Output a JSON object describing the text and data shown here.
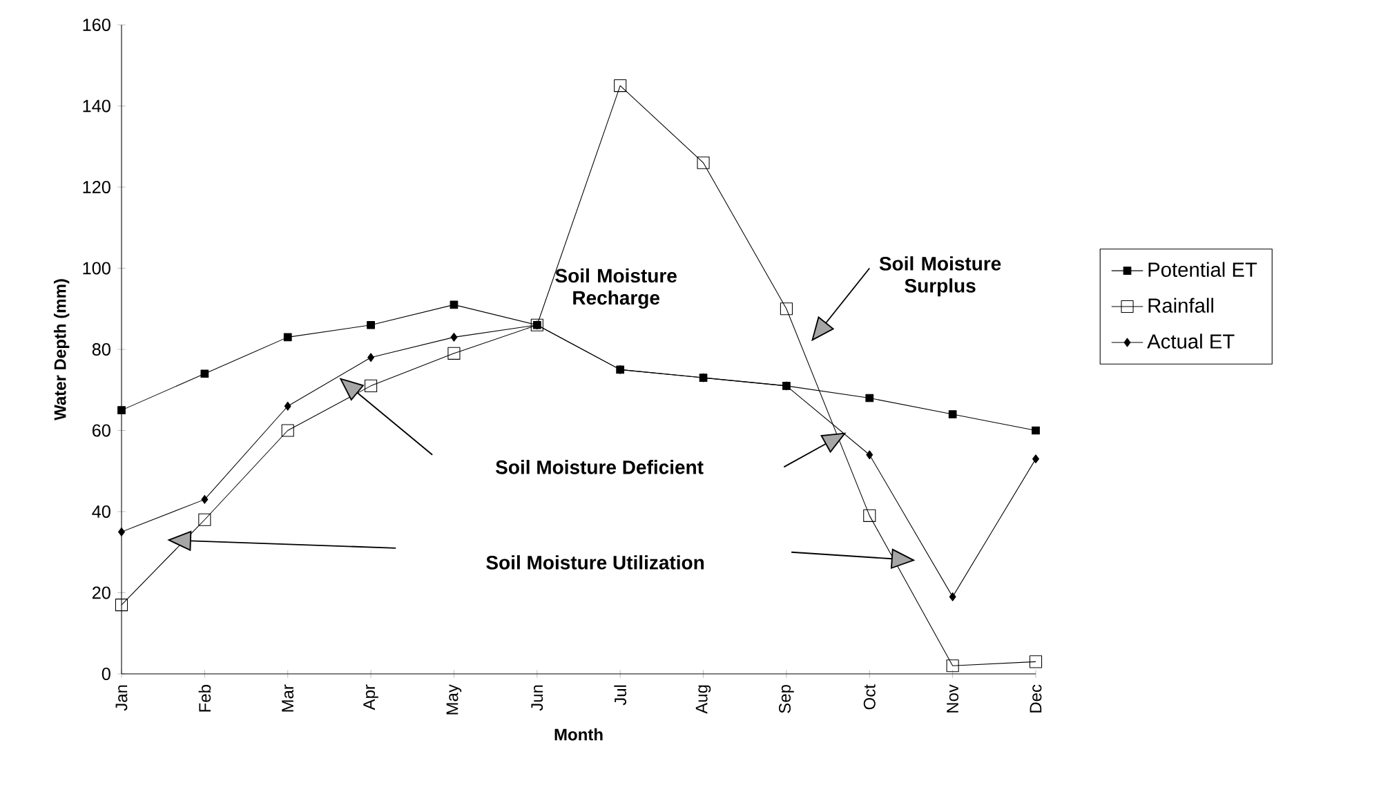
{
  "chart_data": {
    "type": "line",
    "xlabel": "Month",
    "ylabel": "Water Depth (mm)",
    "categories": [
      "Jan",
      "Feb",
      "Mar",
      "Apr",
      "May",
      "Jun",
      "Jul",
      "Aug",
      "Sep",
      "Oct",
      "Nov",
      "Dec"
    ],
    "ylim": [
      0,
      160
    ],
    "yticks": [
      0,
      20,
      40,
      60,
      80,
      100,
      120,
      140,
      160
    ],
    "legend": "right",
    "grid": false,
    "series": [
      {
        "name": "Potential ET",
        "color": "#000000",
        "marker": "square",
        "values": [
          65,
          74,
          83,
          86,
          91,
          86,
          75,
          73,
          71,
          68,
          64,
          60
        ]
      },
      {
        "name": "Rainfall",
        "color": "#000000",
        "marker": "square",
        "values": [
          17,
          38,
          60,
          71,
          79,
          86,
          145,
          126,
          90,
          39,
          2,
          3
        ]
      },
      {
        "name": "Actual ET",
        "color": "#000000",
        "marker": "diamond",
        "values": [
          35,
          43,
          66,
          78,
          83,
          86,
          75,
          73,
          71,
          54,
          19,
          53
        ]
      }
    ],
    "annotations": [
      "Soil Moisture Recharge",
      "Soil Moisture Surplus",
      "Soil Moisture Deficient",
      "Soil Moisture Utilization"
    ]
  }
}
